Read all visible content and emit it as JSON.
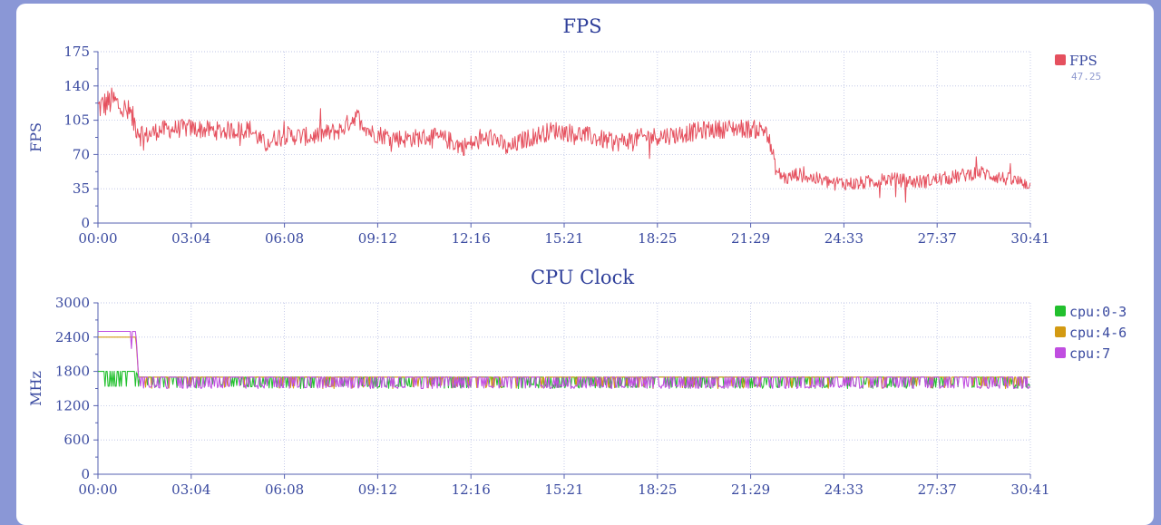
{
  "chart_data": [
    {
      "type": "line",
      "title": "FPS",
      "ylabel": "FPS",
      "xlabel": "",
      "ylim": [
        0,
        175
      ],
      "y_ticks": [
        0,
        35,
        70,
        105,
        140,
        175
      ],
      "x_range_seconds": [
        0,
        1841
      ],
      "x_ticks": [
        "00:00",
        "03:04",
        "06:08",
        "09:12",
        "12:16",
        "15:21",
        "18:25",
        "21:29",
        "24:33",
        "27:37",
        "30:41"
      ],
      "grid": true,
      "legend_position": "right",
      "series": [
        {
          "name": "FPS",
          "value_label": "47.25",
          "color": "#e5505e",
          "x": [
            "00:00",
            "00:30",
            "01:00",
            "01:30",
            "02:00",
            "03:00",
            "04:00",
            "05:00",
            "05:30",
            "06:00",
            "07:00",
            "08:00",
            "08:30",
            "09:00",
            "10:00",
            "11:00",
            "11:30",
            "12:00",
            "13:00",
            "13:30",
            "14:00",
            "15:00",
            "16:00",
            "17:00",
            "18:00",
            "19:00",
            "20:00",
            "21:00",
            "22:00",
            "22:20",
            "22:40",
            "23:00",
            "24:00",
            "25:00",
            "26:00",
            "27:00",
            "28:00",
            "29:00",
            "30:00",
            "30:41"
          ],
          "values": [
            118,
            125,
            112,
            88,
            95,
            97,
            94,
            96,
            80,
            90,
            88,
            95,
            110,
            92,
            86,
            88,
            85,
            78,
            88,
            75,
            85,
            95,
            90,
            82,
            88,
            90,
            95,
            97,
            95,
            52,
            45,
            50,
            42,
            40,
            45,
            42,
            46,
            52,
            44,
            40
          ]
        }
      ]
    },
    {
      "type": "line",
      "title": "CPU Clock",
      "ylabel": "MHz",
      "xlabel": "",
      "ylim": [
        0,
        3000
      ],
      "y_ticks": [
        0,
        600,
        1200,
        1800,
        2400,
        3000
      ],
      "x_range_seconds": [
        0,
        1841
      ],
      "x_ticks": [
        "00:00",
        "03:04",
        "06:08",
        "09:12",
        "12:16",
        "15:21",
        "18:25",
        "21:29",
        "24:33",
        "27:37",
        "30:41"
      ],
      "grid": true,
      "legend_position": "right",
      "series": [
        {
          "name": "cpu:0-3",
          "color": "#22c02e",
          "x": [
            "00:00",
            "00:05",
            "01:15",
            "01:20",
            "30:41"
          ],
          "values": [
            1800,
            1800,
            1800,
            1700,
            1700
          ]
        },
        {
          "name": "cpu:4-6",
          "color": "#d39a12",
          "x": [
            "00:00",
            "00:05",
            "01:15",
            "01:20",
            "30:41"
          ],
          "values": [
            2400,
            2400,
            2400,
            1700,
            1700
          ]
        },
        {
          "name": "cpu:7",
          "color": "#c04ee0",
          "x": [
            "00:00",
            "00:05",
            "01:15",
            "01:20",
            "30:41"
          ],
          "values": [
            2500,
            2500,
            2500,
            1700,
            1700
          ]
        }
      ]
    }
  ]
}
